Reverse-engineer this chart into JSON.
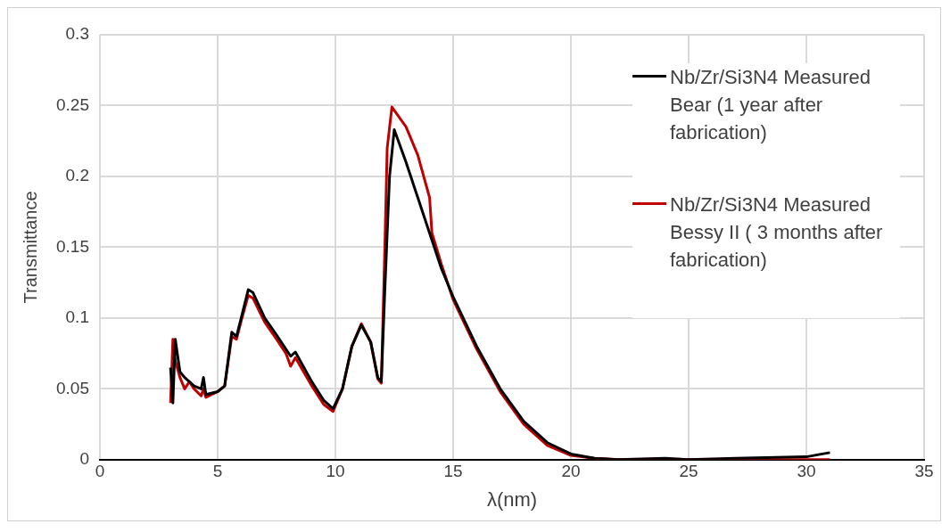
{
  "chart_data": {
    "type": "line",
    "xlabel": "λ(nm)",
    "ylabel": "Transmittance",
    "xlim": [
      0,
      35
    ],
    "xticks": [
      0,
      5,
      10,
      15,
      20,
      25,
      30,
      35
    ],
    "ylim": [
      0,
      0.3
    ],
    "yticks": [
      0,
      0.05,
      0.1,
      0.15,
      0.2,
      0.25,
      0.3
    ],
    "grid": true,
    "legend": "top right",
    "marker": "none",
    "line_style": "solid",
    "series": [
      {
        "name": "Nb/Zr/Si3N4 Measured Bear (1 year after fabrication)",
        "color": "#000000",
        "x": [
          3.0,
          3.1,
          3.2,
          3.4,
          3.6,
          3.8,
          4.0,
          4.3,
          4.4,
          4.5,
          5.0,
          5.3,
          5.6,
          5.8,
          6.0,
          6.3,
          6.5,
          7.0,
          7.5,
          7.9,
          8.1,
          8.3,
          9.0,
          9.5,
          9.9,
          10.3,
          10.7,
          11.1,
          11.5,
          11.8,
          11.95,
          12.1,
          12.3,
          12.5,
          13.0,
          13.5,
          14.0,
          14.5,
          15,
          16,
          17,
          18,
          19,
          20,
          21,
          22,
          24,
          25,
          27,
          30,
          31
        ],
        "values": [
          0.065,
          0.04,
          0.085,
          0.062,
          0.058,
          0.055,
          0.052,
          0.05,
          0.058,
          0.046,
          0.048,
          0.052,
          0.09,
          0.087,
          0.1,
          0.12,
          0.118,
          0.1,
          0.088,
          0.078,
          0.073,
          0.076,
          0.055,
          0.042,
          0.036,
          0.05,
          0.08,
          0.095,
          0.083,
          0.058,
          0.055,
          0.12,
          0.2,
          0.233,
          0.21,
          0.185,
          0.16,
          0.135,
          0.115,
          0.08,
          0.05,
          0.027,
          0.012,
          0.004,
          0.001,
          0,
          0.001,
          0,
          0.001,
          0.002,
          0.005
        ]
      },
      {
        "name": "Nb/Zr/Si3N4 Measured Bessy II ( 3 months after fabrication)",
        "color": "#c00000",
        "x": [
          3.0,
          3.1,
          3.2,
          3.4,
          3.6,
          3.8,
          4.0,
          4.3,
          4.4,
          4.5,
          5.0,
          5.3,
          5.6,
          5.8,
          6.0,
          6.3,
          6.5,
          7.0,
          7.5,
          7.9,
          8.1,
          8.3,
          9.0,
          9.5,
          9.9,
          10.3,
          10.7,
          11.1,
          11.5,
          11.8,
          11.95,
          12.1,
          12.2,
          12.4,
          13.0,
          13.5,
          14.0,
          14.1,
          14.5,
          15,
          16,
          17,
          18,
          19,
          20,
          21,
          22,
          25,
          31
        ],
        "values": [
          0.04,
          0.085,
          0.07,
          0.058,
          0.05,
          0.055,
          0.05,
          0.045,
          0.05,
          0.044,
          0.048,
          0.052,
          0.087,
          0.085,
          0.098,
          0.116,
          0.114,
          0.097,
          0.085,
          0.075,
          0.066,
          0.072,
          0.052,
          0.039,
          0.034,
          0.05,
          0.08,
          0.096,
          0.083,
          0.057,
          0.054,
          0.15,
          0.22,
          0.249,
          0.235,
          0.215,
          0.185,
          0.16,
          0.138,
          0.113,
          0.078,
          0.048,
          0.025,
          0.01,
          0.003,
          0.001,
          0,
          0,
          0
        ]
      }
    ]
  }
}
